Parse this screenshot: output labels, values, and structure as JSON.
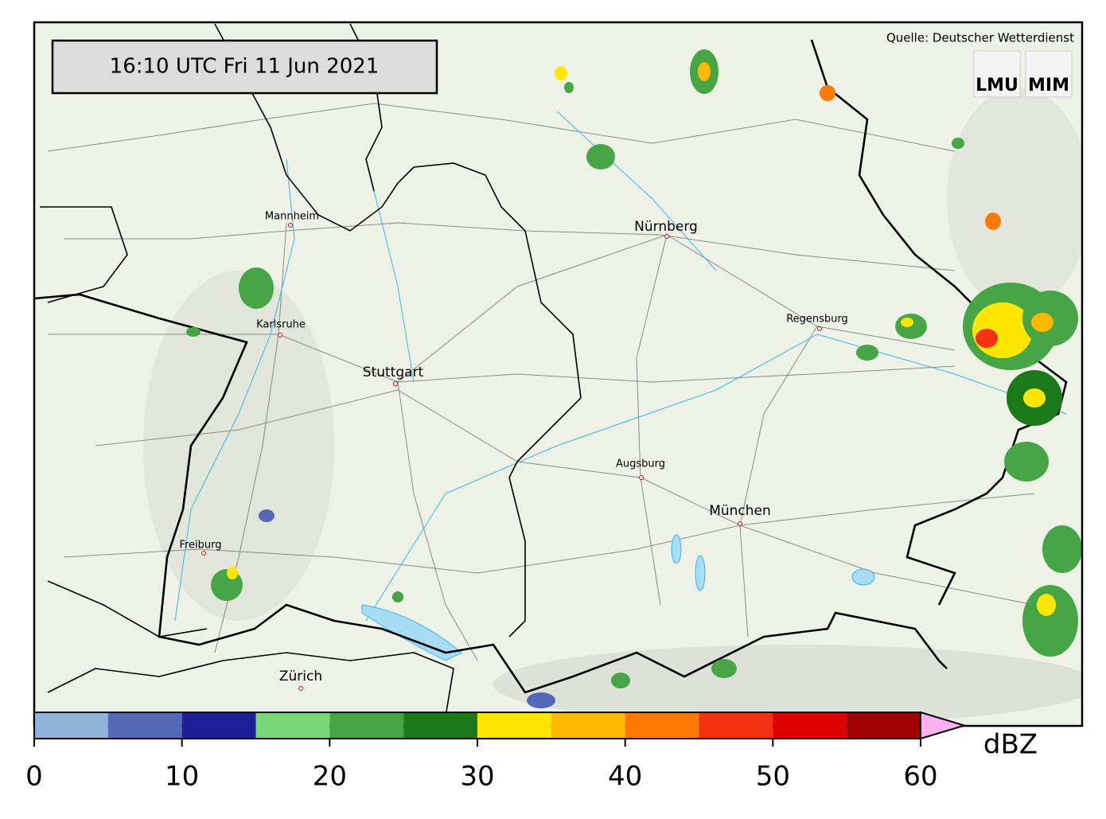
{
  "timestamp": "16:10 UTC  Fri 11 Jun 2021",
  "source": "Quelle: Deutscher Wetterdienst",
  "logos": [
    "LMU",
    "MIM"
  ],
  "cities": [
    "Mannheim",
    "Nürnberg",
    "Karlsruhe",
    "Stuttgart",
    "Regensburg",
    "Augsburg",
    "München",
    "Freiburg",
    "Zürich"
  ],
  "colorbar": {
    "bounds": [
      0,
      5,
      10,
      15,
      20,
      25,
      30,
      35,
      40,
      45,
      50,
      55,
      60
    ],
    "colors": [
      "#8fb3d9",
      "#5468b8",
      "#1c1f96",
      "#78d878",
      "#46a646",
      "#1a7a1a",
      "#ffe600",
      "#ffb800",
      "#ff7800",
      "#f53010",
      "#dc0000",
      "#a00000"
    ],
    "extend_color": "#ffb0f0",
    "xlim": [
      0,
      60
    ],
    "ticks": [
      0,
      10,
      20,
      30,
      40,
      50,
      60
    ],
    "unit": "dBZ"
  }
}
